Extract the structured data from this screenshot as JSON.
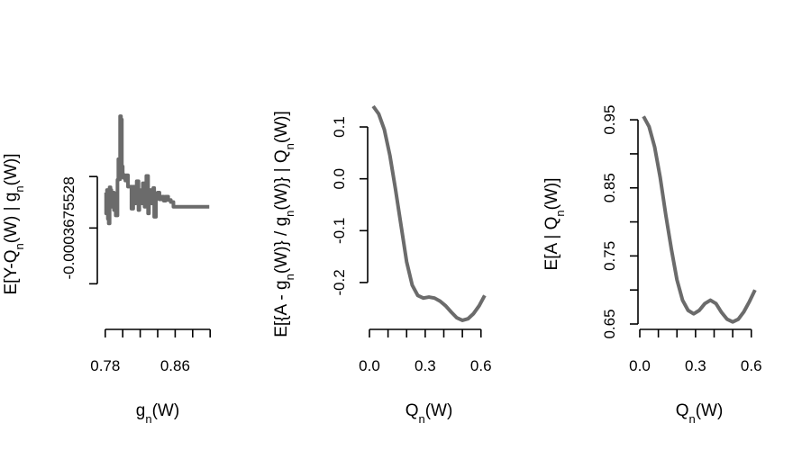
{
  "chart_data": [
    {
      "type": "line",
      "line_style": "step",
      "xlabel": "g_n(W)",
      "ylabel": "E[Y-Q_n(W) | g_n(W)]",
      "xlim": [
        0.773,
        0.907
      ],
      "ylim": [
        -0.0018,
        0.00145
      ],
      "xticks": [
        0.78,
        0.8,
        0.82,
        0.84,
        0.86,
        0.88,
        0.9
      ],
      "xtick_labels": [
        "0.78",
        "",
        "",
        "",
        "0.86",
        "",
        ""
      ],
      "yticks": [
        -0.0012,
        -0.0003675528,
        0.0004
      ],
      "ytick_labels": [
        "",
        "-0.0003675528",
        ""
      ],
      "line_color": "#6b6b6b",
      "series": [
        {
          "x": [
            0.78,
            0.781,
            0.782,
            0.783,
            0.784,
            0.785,
            0.786,
            0.787,
            0.789,
            0.79,
            0.791,
            0.792,
            0.794,
            0.795,
            0.796,
            0.797,
            0.798,
            0.799,
            0.8,
            0.801,
            0.803,
            0.804,
            0.806,
            0.807,
            0.808,
            0.81,
            0.812,
            0.813,
            0.815,
            0.816,
            0.818,
            0.819,
            0.82,
            0.822,
            0.823,
            0.825,
            0.826,
            0.827,
            0.829,
            0.83,
            0.832,
            0.833,
            0.835,
            0.836,
            0.838,
            0.84,
            0.842,
            0.845,
            0.847,
            0.849,
            0.852,
            0.855,
            0.858,
            0.862,
            0.866,
            0.87,
            0.876,
            0.882,
            0.886,
            0.889,
            0.891,
            0.893,
            0.894,
            0.896,
            0.897,
            0.899
          ],
          "y": [
            0.00016,
            -0.00015,
            0.0002,
            -0.00023,
            -0.0003,
            0.00024,
            0.0002,
            -5e-05,
            0.00016,
            -0.0001,
            5e-05,
            -0.00018,
            0.00035,
            0.00066,
            0.00036,
            0.0013,
            0.00125,
            0.00055,
            0.00043,
            0.00038,
            0.00034,
            0.00042,
            0.00025,
            0.00025,
            0.00025,
            -8e-05,
            0.00025,
            0.0,
            0.00012,
            0.00033,
            -0.0001,
            0.0002,
            0.00011,
            0.0,
            0.0003,
            -5e-05,
            0.00015,
            0.00041,
            -0.00015,
            0.0002,
            5e-05,
            0.0,
            0.00023,
            -0.0002,
            0.0001,
            0.00016,
            6e-05,
            0.0001,
            4e-05,
            0.0001,
            5e-05,
            2e-05,
            -5e-05,
            -5e-05,
            -5e-05,
            -5e-05,
            -5e-05,
            -5e-05,
            -5e-05,
            -5e-05,
            -5e-05,
            -5e-05,
            -5e-05,
            -5e-05,
            -5e-05,
            -5e-05
          ]
        }
      ]
    },
    {
      "type": "line",
      "xlabel": "Q_n(W)",
      "ylabel": "E[{A - g_n(W)} / g_n(W)} | Q_n(W)]",
      "xlim": [
        0.0,
        0.64
      ],
      "ylim": [
        -0.28,
        0.14
      ],
      "xticks": [
        0.0,
        0.1,
        0.2,
        0.3,
        0.4,
        0.5,
        0.6
      ],
      "xtick_labels": [
        "0.0",
        "",
        "",
        "0.3",
        "",
        "",
        "0.6"
      ],
      "yticks": [
        -0.2,
        -0.1,
        0.0,
        0.1
      ],
      "ytick_labels": [
        "-0.2",
        "-0.1",
        "0.0",
        "0.1"
      ],
      "line_color": "#6b6b6b",
      "series": [
        {
          "x": [
            0.02,
            0.05,
            0.08,
            0.11,
            0.14,
            0.17,
            0.2,
            0.23,
            0.26,
            0.29,
            0.32,
            0.35,
            0.38,
            0.41,
            0.44,
            0.47,
            0.5,
            0.53,
            0.56,
            0.59,
            0.62
          ],
          "y": [
            0.14,
            0.125,
            0.095,
            0.045,
            -0.02,
            -0.09,
            -0.16,
            -0.205,
            -0.225,
            -0.23,
            -0.228,
            -0.23,
            -0.236,
            -0.245,
            -0.257,
            -0.268,
            -0.273,
            -0.27,
            -0.26,
            -0.245,
            -0.225
          ]
        }
      ]
    },
    {
      "type": "line",
      "xlabel": "Q_n(W)",
      "ylabel": "E[A | Q_n(W)]",
      "xlim": [
        0.0,
        0.64
      ],
      "ylim": [
        0.65,
        0.97
      ],
      "xticks": [
        0.0,
        0.1,
        0.2,
        0.3,
        0.4,
        0.5,
        0.6
      ],
      "xtick_labels": [
        "0.0",
        "",
        "",
        "0.3",
        "",
        "",
        "0.6"
      ],
      "yticks": [
        0.65,
        0.7,
        0.75,
        0.8,
        0.85,
        0.9,
        0.95
      ],
      "ytick_labels": [
        "0.65",
        "",
        "0.75",
        "",
        "0.85",
        "",
        "0.95"
      ],
      "line_color": "#6b6b6b",
      "series": [
        {
          "x": [
            0.02,
            0.05,
            0.08,
            0.11,
            0.14,
            0.17,
            0.2,
            0.23,
            0.26,
            0.29,
            0.32,
            0.35,
            0.38,
            0.41,
            0.44,
            0.47,
            0.5,
            0.53,
            0.56,
            0.59,
            0.62
          ],
          "y": [
            0.955,
            0.94,
            0.91,
            0.865,
            0.81,
            0.76,
            0.715,
            0.685,
            0.67,
            0.665,
            0.67,
            0.68,
            0.685,
            0.68,
            0.667,
            0.657,
            0.653,
            0.657,
            0.668,
            0.683,
            0.7
          ]
        }
      ]
    }
  ]
}
